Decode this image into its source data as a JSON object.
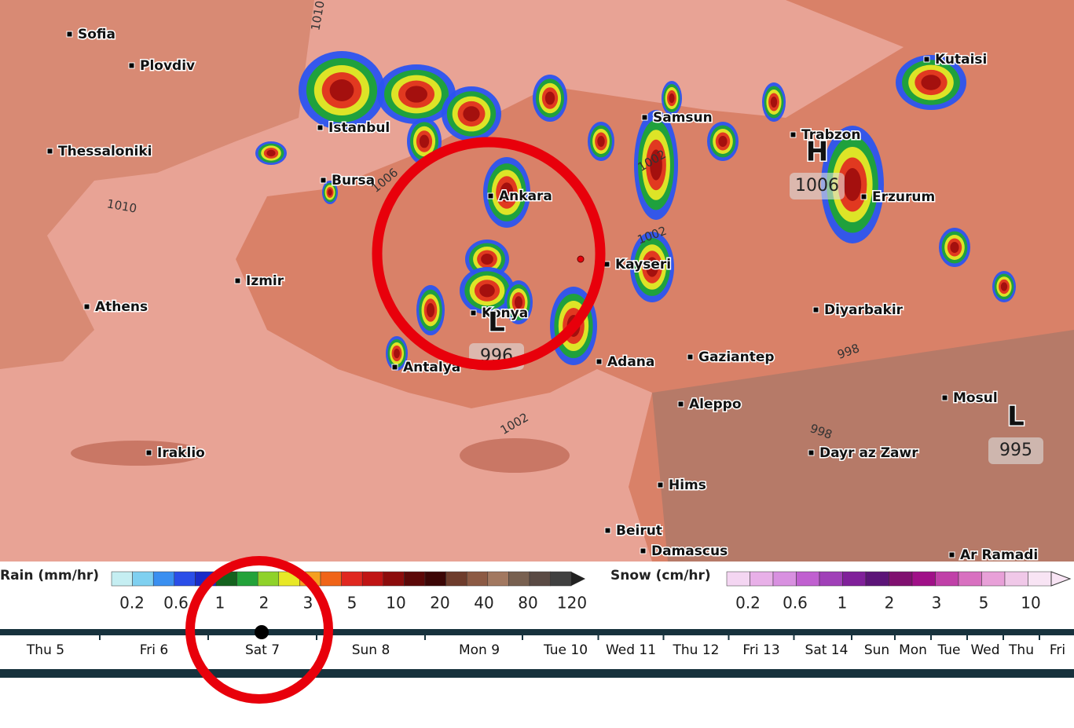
{
  "map": {
    "cities": [
      "Sofia",
      "Plovdiv",
      "Istanbul",
      "Thessaloniki",
      "Bursa",
      "Ankara",
      "Samsun",
      "Trabzon",
      "Kutaisi",
      "Erzurum",
      "Kayseri",
      "Izmir",
      "Athens",
      "Konya",
      "Diyarbakir",
      "Antalya",
      "Adana",
      "Gaziantep",
      "Aleppo",
      "Mosul",
      "Iraklio",
      "Dayr az Zawr",
      "Hims",
      "Beirut",
      "Damascus",
      "Ar Ramadi"
    ],
    "isobars": [
      "1010",
      "1010",
      "1006",
      "1002",
      "1002",
      "998",
      "998",
      "1002"
    ],
    "pressure_centers": [
      {
        "symbol": "H",
        "value": "1006"
      },
      {
        "symbol": "L",
        "value": "996"
      },
      {
        "symbol": "L",
        "value": "995"
      }
    ]
  },
  "legend": {
    "rain": {
      "title": "Rain (mm/hr)",
      "ticks": [
        "0.2",
        "0.6",
        "1",
        "2",
        "3",
        "5",
        "10",
        "20",
        "40",
        "80",
        "120"
      ]
    },
    "snow": {
      "title": "Snow (cm/hr)",
      "ticks": [
        "0.2",
        "0.6",
        "1",
        "2",
        "3",
        "5",
        "10"
      ]
    }
  },
  "timeline": {
    "days": [
      "Thu 5",
      "Fri 6",
      "Sat 7",
      "Sun 8",
      "Mon 9",
      "Tue 10",
      "Wed 11",
      "Thu 12",
      "Fri 13",
      "Sat 14",
      "Sun",
      "Mon",
      "Tue",
      "Wed",
      "Thu",
      "Fri"
    ]
  }
}
